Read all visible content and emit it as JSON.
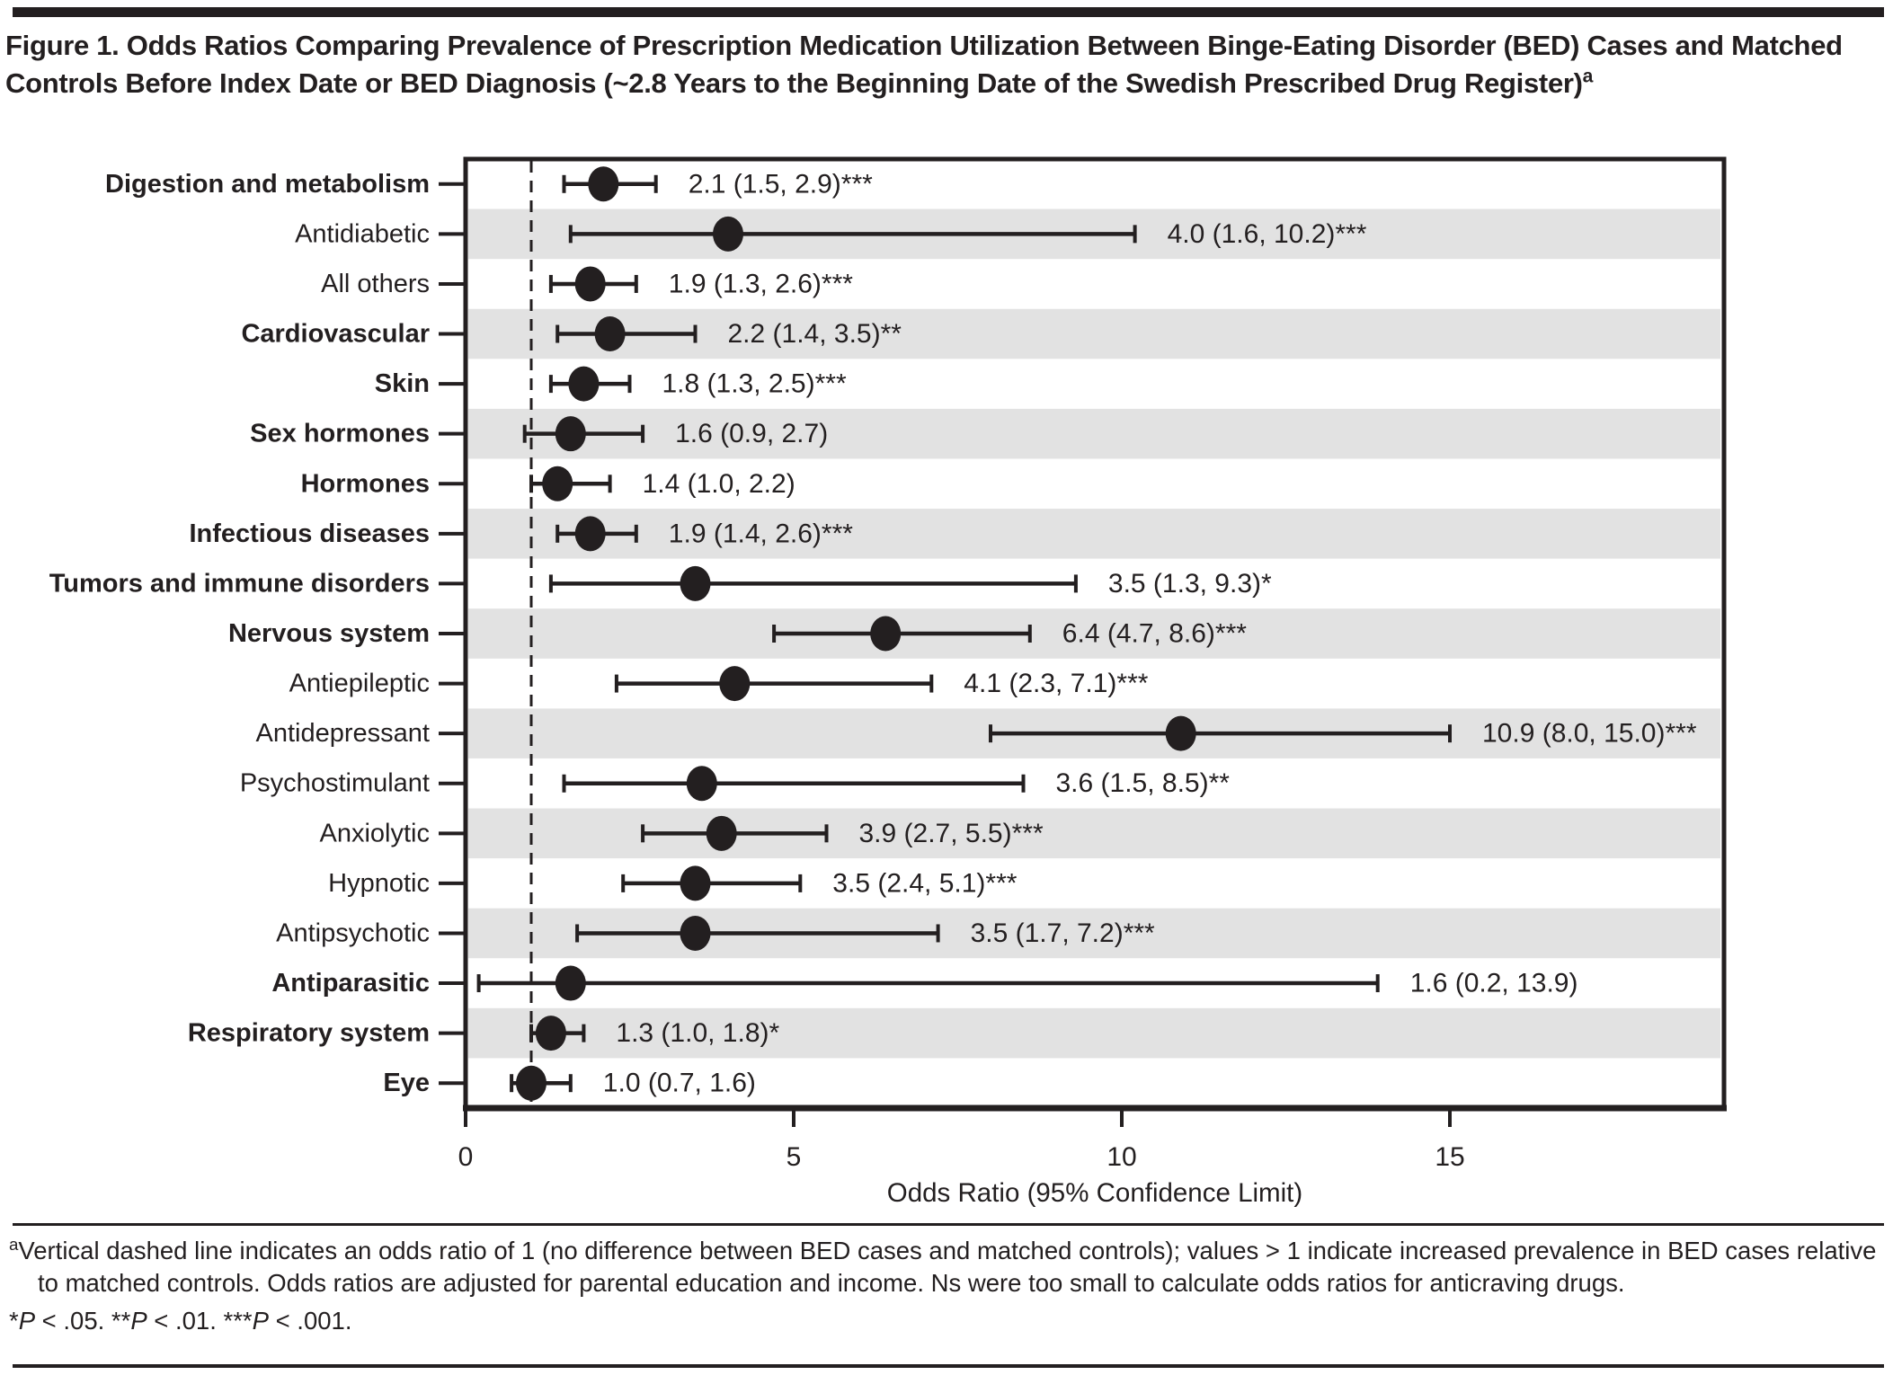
{
  "title": {
    "text": "Figure 1. Odds Ratios Comparing Prevalence of Prescription Medication Utilization Between Binge-Eating Disorder (BED) Cases and Matched Controls Before Index Date or BED Diagnosis (~2.8 Years to the Beginning Date of the Swedish Prescribed Drug Register)",
    "superscript": "a"
  },
  "chart_data": {
    "type": "scatter",
    "subtype": "forest-plot",
    "xlabel": "Odds Ratio (95% Confidence Limit)",
    "x_ticks": [
      0,
      5,
      10,
      15
    ],
    "xlim": [
      0,
      19.2
    ],
    "reference_line_x": 1,
    "grid": false,
    "marker_color": "#231f20",
    "band_color": "#e2e2e2",
    "rows": [
      {
        "label": "Digestion and metabolism",
        "bold": true,
        "or": 2.1,
        "ci_low": 1.5,
        "ci_high": 2.9,
        "annotation": "2.1 (1.5, 2.9)***",
        "shaded": false
      },
      {
        "label": "Antidiabetic",
        "bold": false,
        "or": 4.0,
        "ci_low": 1.6,
        "ci_high": 10.2,
        "annotation": "4.0 (1.6, 10.2)***",
        "shaded": true
      },
      {
        "label": "All others",
        "bold": false,
        "or": 1.9,
        "ci_low": 1.3,
        "ci_high": 2.6,
        "annotation": "1.9 (1.3, 2.6)***",
        "shaded": false
      },
      {
        "label": "Cardiovascular",
        "bold": true,
        "or": 2.2,
        "ci_low": 1.4,
        "ci_high": 3.5,
        "annotation": "2.2 (1.4, 3.5)**",
        "shaded": true
      },
      {
        "label": "Skin",
        "bold": true,
        "or": 1.8,
        "ci_low": 1.3,
        "ci_high": 2.5,
        "annotation": "1.8 (1.3, 2.5)***",
        "shaded": false
      },
      {
        "label": "Sex hormones",
        "bold": true,
        "or": 1.6,
        "ci_low": 0.9,
        "ci_high": 2.7,
        "annotation": "1.6 (0.9, 2.7)",
        "shaded": true
      },
      {
        "label": "Hormones",
        "bold": true,
        "or": 1.4,
        "ci_low": 1.0,
        "ci_high": 2.2,
        "annotation": "1.4 (1.0, 2.2)",
        "shaded": false
      },
      {
        "label": "Infectious diseases",
        "bold": true,
        "or": 1.9,
        "ci_low": 1.4,
        "ci_high": 2.6,
        "annotation": "1.9 (1.4, 2.6)***",
        "shaded": true
      },
      {
        "label": "Tumors and immune disorders",
        "bold": true,
        "or": 3.5,
        "ci_low": 1.3,
        "ci_high": 9.3,
        "annotation": "3.5 (1.3, 9.3)*",
        "shaded": false
      },
      {
        "label": "Nervous system",
        "bold": true,
        "or": 6.4,
        "ci_low": 4.7,
        "ci_high": 8.6,
        "annotation": "6.4 (4.7, 8.6)***",
        "shaded": true
      },
      {
        "label": "Antiepileptic",
        "bold": false,
        "or": 4.1,
        "ci_low": 2.3,
        "ci_high": 7.1,
        "annotation": "4.1 (2.3, 7.1)***",
        "shaded": false
      },
      {
        "label": "Antidepressant",
        "bold": false,
        "or": 10.9,
        "ci_low": 8.0,
        "ci_high": 15.0,
        "annotation": "10.9 (8.0, 15.0)***",
        "shaded": true
      },
      {
        "label": "Psychostimulant",
        "bold": false,
        "or": 3.6,
        "ci_low": 1.5,
        "ci_high": 8.5,
        "annotation": "3.6 (1.5, 8.5)**",
        "shaded": false
      },
      {
        "label": "Anxiolytic",
        "bold": false,
        "or": 3.9,
        "ci_low": 2.7,
        "ci_high": 5.5,
        "annotation": "3.9 (2.7, 5.5)***",
        "shaded": true
      },
      {
        "label": "Hypnotic",
        "bold": false,
        "or": 3.5,
        "ci_low": 2.4,
        "ci_high": 5.1,
        "annotation": "3.5 (2.4, 5.1)***",
        "shaded": false
      },
      {
        "label": "Antipsychotic",
        "bold": false,
        "or": 3.5,
        "ci_low": 1.7,
        "ci_high": 7.2,
        "annotation": "3.5 (1.7, 7.2)***",
        "shaded": true
      },
      {
        "label": "Antiparasitic",
        "bold": true,
        "or": 1.6,
        "ci_low": 0.2,
        "ci_high": 13.9,
        "annotation": "1.6 (0.2, 13.9)",
        "shaded": false
      },
      {
        "label": "Respiratory system",
        "bold": true,
        "or": 1.3,
        "ci_low": 1.0,
        "ci_high": 1.8,
        "annotation": "1.3 (1.0, 1.8)*",
        "shaded": true
      },
      {
        "label": "Eye",
        "bold": true,
        "or": 1.0,
        "ci_low": 0.7,
        "ci_high": 1.6,
        "annotation": "1.0 (0.7, 1.6)",
        "shaded": false
      }
    ]
  },
  "footnote": {
    "superscript": "a",
    "text": "Vertical dashed line indicates an odds ratio of 1 (no difference between BED cases and matched controls); values > 1 indicate increased prevalence in BED cases relative to matched controls. Odds ratios are adjusted for parental education and income. Ns were too small to calculate odds ratios for anticraving drugs.",
    "sig_parts": [
      {
        "t": "*",
        "italic": false
      },
      {
        "t": "P",
        "italic": true
      },
      {
        "t": " < .05. ",
        "italic": false
      },
      {
        "t": "**",
        "italic": false
      },
      {
        "t": "P",
        "italic": true
      },
      {
        "t": " < .01. ",
        "italic": false
      },
      {
        "t": "***",
        "italic": false
      },
      {
        "t": "P",
        "italic": true
      },
      {
        "t": " < .001.",
        "italic": false
      }
    ]
  },
  "colors": {
    "ink": "#231f20",
    "band": "#e2e2e2",
    "background": "#ffffff"
  }
}
